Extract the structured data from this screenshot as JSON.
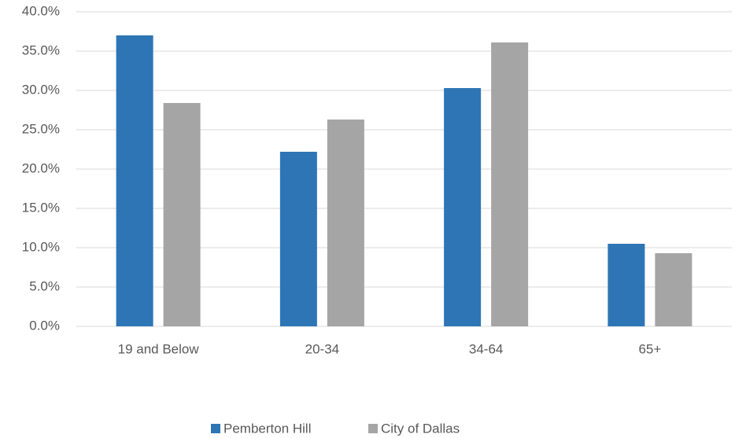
{
  "chart_data": {
    "type": "bar",
    "categories": [
      "19 and Below",
      "20-34",
      "34-64",
      "65+"
    ],
    "series": [
      {
        "name": "Pemberton Hill",
        "color": "#2e75b6",
        "values": [
          37.0,
          22.2,
          30.3,
          10.5
        ]
      },
      {
        "name": "City of Dallas",
        "color": "#a5a5a5",
        "values": [
          28.4,
          26.3,
          36.1,
          9.3
        ]
      }
    ],
    "ylim": [
      0,
      40
    ],
    "yticks": [
      {
        "value": 0,
        "label": "0.0%"
      },
      {
        "value": 5,
        "label": "5.0%"
      },
      {
        "value": 10,
        "label": "10.0%"
      },
      {
        "value": 15,
        "label": "15.0%"
      },
      {
        "value": 20,
        "label": "20.0%"
      },
      {
        "value": 25,
        "label": "25.0%"
      },
      {
        "value": 30,
        "label": "30.0%"
      },
      {
        "value": 35,
        "label": "35.0%"
      },
      {
        "value": 40,
        "label": "40.0%"
      }
    ],
    "grid": true,
    "legend": "bottom"
  }
}
